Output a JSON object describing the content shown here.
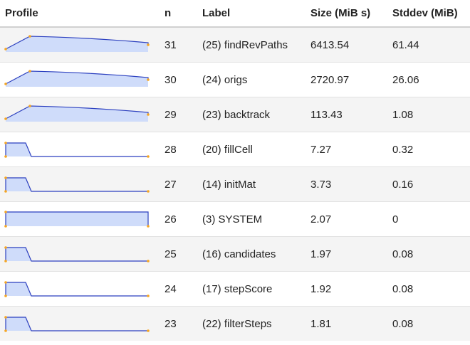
{
  "table": {
    "headers": {
      "profile": "Profile",
      "n": "n",
      "label": "Label",
      "size": "Size (MiB s)",
      "stddev": "Stddev (MiB)"
    },
    "colors": {
      "spark_fill": "#cfdcfa",
      "spark_line": "#2b3fbf",
      "spark_marker": "#f5a623"
    },
    "rows": [
      {
        "n": "31",
        "label": "(25) findRevPaths",
        "size": "6413.54",
        "stddev": "61.44",
        "profile_shape": "curve"
      },
      {
        "n": "30",
        "label": "(24) origs",
        "size": "2720.97",
        "stddev": "26.06",
        "profile_shape": "curve"
      },
      {
        "n": "29",
        "label": "(23) backtrack",
        "size": "113.43",
        "stddev": "1.08",
        "profile_shape": "curve"
      },
      {
        "n": "28",
        "label": "(20) fillCell",
        "size": "7.27",
        "stddev": "0.32",
        "profile_shape": "step"
      },
      {
        "n": "27",
        "label": "(14) initMat",
        "size": "3.73",
        "stddev": "0.16",
        "profile_shape": "step"
      },
      {
        "n": "26",
        "label": "(3) SYSTEM",
        "size": "2.07",
        "stddev": "0",
        "profile_shape": "flat"
      },
      {
        "n": "25",
        "label": "(16) candidates",
        "size": "1.97",
        "stddev": "0.08",
        "profile_shape": "step"
      },
      {
        "n": "24",
        "label": "(17) stepScore",
        "size": "1.92",
        "stddev": "0.08",
        "profile_shape": "step"
      },
      {
        "n": "23",
        "label": "(22) filterSteps",
        "size": "1.81",
        "stddev": "0.08",
        "profile_shape": "step"
      }
    ]
  }
}
